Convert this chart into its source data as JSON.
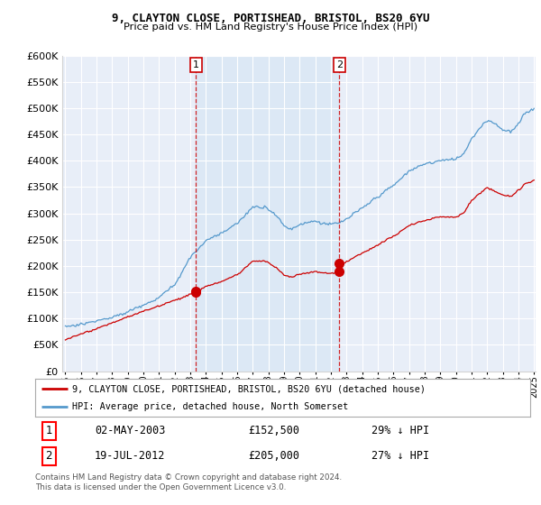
{
  "title": "9, CLAYTON CLOSE, PORTISHEAD, BRISTOL, BS20 6YU",
  "subtitle": "Price paid vs. HM Land Registry's House Price Index (HPI)",
  "hpi_label": "HPI: Average price, detached house, North Somerset",
  "property_label": "9, CLAYTON CLOSE, PORTISHEAD, BRISTOL, BS20 6YU (detached house)",
  "red_color": "#cc0000",
  "blue_color": "#5599cc",
  "transaction1_year": 2003.37,
  "transaction1_price": 152500,
  "transaction1_date": "02-MAY-2003",
  "transaction1_note": "29% ↓ HPI",
  "transaction2_year": 2012.54,
  "transaction2_price": 205000,
  "transaction2_date": "19-JUL-2012",
  "transaction2_note": "27% ↓ HPI",
  "ylim_min": 0,
  "ylim_max": 600000,
  "yticks": [
    0,
    50000,
    100000,
    150000,
    200000,
    250000,
    300000,
    350000,
    400000,
    450000,
    500000,
    550000,
    600000
  ],
  "xmin": 1995,
  "xmax": 2025,
  "footer": "Contains HM Land Registry data © Crown copyright and database right 2024.\nThis data is licensed under the Open Government Licence v3.0.",
  "background_color": "#ffffff",
  "plot_bg_color": "#e8eef8",
  "shade_color": "#dce8f5"
}
